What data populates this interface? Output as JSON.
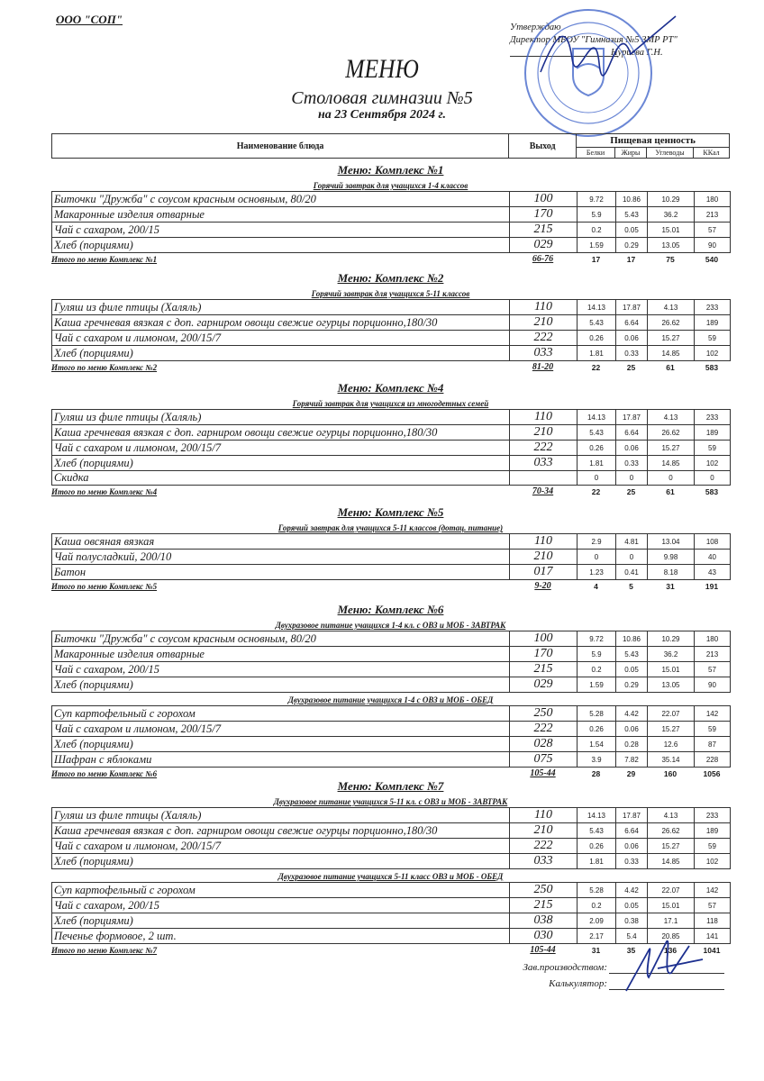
{
  "org": "ООО \"СОП\"",
  "approval": {
    "line1": "Утверждаю",
    "line2": "Директор МБОУ \"Гимназия №5 ЗМР РТ\"",
    "line3": "Нуриева Г.Н."
  },
  "title": "МЕНЮ",
  "subtitle": "Столовая гимназии №5",
  "date": "на 23 Сентября 2024 г.",
  "header": {
    "name": "Наименование блюда",
    "output": "Выход",
    "nutrition": "Пищевая ценность",
    "protein": "Белки",
    "fat": "Жиры",
    "carbs": "Углеводы",
    "kcal": "ККал"
  },
  "stamp_color": "#3a5fc8",
  "sections": [
    {
      "title": "Меню: Комплекс №1",
      "groups": [
        {
          "subtitle": "Горячий завтрак для учащихся 1-4 классов",
          "rows": [
            [
              "Биточки  \"Дружба\" с соусом красным основным, 80/20",
              "100",
              "9.72",
              "10.86",
              "10.29",
              "180"
            ],
            [
              "Макаронные изделия отварные",
              "170",
              "5.9",
              "5.43",
              "36.2",
              "213"
            ],
            [
              "Чай с сахаром, 200/15",
              "215",
              "0.2",
              "0.05",
              "15.01",
              "57"
            ],
            [
              "Хлеб (порциями)",
              "029",
              "1.59",
              "0.29",
              "13.05",
              "90"
            ]
          ]
        }
      ],
      "total": [
        "Итого по меню Комплекс №1",
        "66-76",
        "17",
        "17",
        "75",
        "540"
      ]
    },
    {
      "title": "Меню: Комплекс №2",
      "groups": [
        {
          "subtitle": "Горячий завтрак для учащихся 5-11 классов",
          "rows": [
            [
              "Гуляш из филе птицы (Халяль)",
              "110",
              "14.13",
              "17.87",
              "4.13",
              "233"
            ],
            [
              "Каша гречневая вязкая с доп. гарниром овощи свежие огурцы порционно,180/30",
              "210",
              "5.43",
              "6.64",
              "26.62",
              "189"
            ],
            [
              "Чай с сахаром и лимоном, 200/15/7",
              "222",
              "0.26",
              "0.06",
              "15.27",
              "59"
            ],
            [
              "Хлеб (порциями)",
              "033",
              "1.81",
              "0.33",
              "14.85",
              "102"
            ]
          ]
        }
      ],
      "total": [
        "Итого по меню Комплекс №2",
        "81-20",
        "22",
        "25",
        "61",
        "583"
      ]
    },
    {
      "title": "Меню: Комплекс №4",
      "groups": [
        {
          "subtitle": "Горячий завтрак для учащихся из многодетных семей",
          "rows": [
            [
              "Гуляш из филе птицы (Халяль)",
              "110",
              "14.13",
              "17.87",
              "4.13",
              "233"
            ],
            [
              "Каша гречневая вязкая с доп. гарниром овощи свежие огурцы порционно,180/30",
              "210",
              "5.43",
              "6.64",
              "26.62",
              "189"
            ],
            [
              "Чай с сахаром и лимоном, 200/15/7",
              "222",
              "0.26",
              "0.06",
              "15.27",
              "59"
            ],
            [
              "Хлеб (порциями)",
              "033",
              "1.81",
              "0.33",
              "14.85",
              "102"
            ],
            [
              "Скидка",
              "",
              "0",
              "0",
              "0",
              "0"
            ]
          ]
        }
      ],
      "total": [
        "Итого по меню Комплекс №4",
        "70-34",
        "22",
        "25",
        "61",
        "583"
      ]
    },
    {
      "title": "Меню: Комплекс №5",
      "groups": [
        {
          "subtitle": "Горячий завтрак для учащихся 5-11 классов (дотац. питание)",
          "rows": [
            [
              "Каша овсяная вязкая",
              "110",
              "2.9",
              "4.81",
              "13.04",
              "108"
            ],
            [
              "Чай полусладкий, 200/10",
              "210",
              "0",
              "0",
              "9.98",
              "40"
            ],
            [
              "Батон",
              "017",
              "1.23",
              "0.41",
              "8.18",
              "43"
            ]
          ]
        }
      ],
      "total": [
        "Итого по меню Комплекс №5",
        "9-20",
        "4",
        "5",
        "31",
        "191"
      ]
    },
    {
      "title": "Меню: Комплекс №6",
      "groups": [
        {
          "subtitle": "Двухразовое питание учащихся 1-4 кл. с ОВЗ и МОБ - ЗАВТРАК",
          "rows": [
            [
              "Биточки  \"Дружба\" с соусом красным основным, 80/20",
              "100",
              "9.72",
              "10.86",
              "10.29",
              "180"
            ],
            [
              "Макаронные изделия отварные",
              "170",
              "5.9",
              "5.43",
              "36.2",
              "213"
            ],
            [
              "Чай с сахаром, 200/15",
              "215",
              "0.2",
              "0.05",
              "15.01",
              "57"
            ],
            [
              "Хлеб (порциями)",
              "029",
              "1.59",
              "0.29",
              "13.05",
              "90"
            ]
          ]
        },
        {
          "subtitle": "Двухразовое питание учащихся 1-4 с ОВЗ и МОБ - ОБЕД",
          "rows": [
            [
              "Суп картофельный с горохом",
              "250",
              "5.28",
              "4.42",
              "22.07",
              "142"
            ],
            [
              "Чай с сахаром и лимоном, 200/15/7",
              "222",
              "0.26",
              "0.06",
              "15.27",
              "59"
            ],
            [
              "Хлеб (порциями)",
              "028",
              "1.54",
              "0.28",
              "12.6",
              "87"
            ],
            [
              "Шафран с яблоками",
              "075",
              "3.9",
              "7.82",
              "35.14",
              "228"
            ]
          ]
        }
      ],
      "total": [
        "Итого по меню Комплекс №6",
        "105-44",
        "28",
        "29",
        "160",
        "1056"
      ]
    },
    {
      "title": "Меню: Комплекс №7",
      "groups": [
        {
          "subtitle": "Двухразовое питание учащихся 5-11 кл. с  ОВЗ и МОБ - ЗАВТРАК",
          "rows": [
            [
              "Гуляш из филе птицы (Халяль)",
              "110",
              "14.13",
              "17.87",
              "4.13",
              "233"
            ],
            [
              "Каша гречневая вязкая с доп. гарниром овощи свежие огурцы порционно,180/30",
              "210",
              "5.43",
              "6.64",
              "26.62",
              "189"
            ],
            [
              "Чай с сахаром и лимоном, 200/15/7",
              "222",
              "0.26",
              "0.06",
              "15.27",
              "59"
            ],
            [
              "Хлеб (порциями)",
              "033",
              "1.81",
              "0.33",
              "14.85",
              "102"
            ]
          ]
        },
        {
          "subtitle": "Двухразовое питание учащихся 5-11 класс ОВЗ и МОБ - ОБЕД",
          "rows": [
            [
              "Суп картофельный с горохом",
              "250",
              "5.28",
              "4.42",
              "22.07",
              "142"
            ],
            [
              "Чай с сахаром, 200/15",
              "215",
              "0.2",
              "0.05",
              "15.01",
              "57"
            ],
            [
              "Хлеб (порциями)",
              "038",
              "2.09",
              "0.38",
              "17.1",
              "118"
            ],
            [
              "Печенье формовое, 2 шт.",
              "030",
              "2.17",
              "5.4",
              "20.85",
              "141"
            ]
          ]
        }
      ],
      "total": [
        "Итого по меню Комплекс №7",
        "105-44",
        "31",
        "35",
        "136",
        "1041"
      ]
    }
  ],
  "signatures": {
    "production": "Зав.производством:",
    "calculator": "Калькулятор:"
  }
}
